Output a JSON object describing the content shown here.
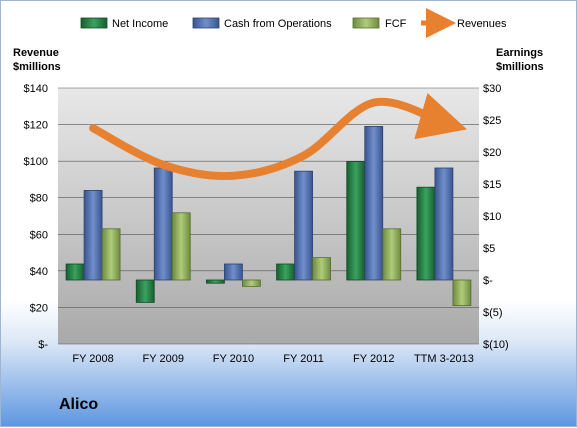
{
  "company": "Alico",
  "left_axis_label": [
    "Revenue",
    "$millions"
  ],
  "right_axis_label": [
    "Earnings",
    "$millions"
  ],
  "chart_data": {
    "type": "bar",
    "categories": [
      "FY 2008",
      "FY 2009",
      "FY 2010",
      "FY 2011",
      "FY 2012",
      "TTM 3-2013"
    ],
    "series": [
      {
        "name": "Net Income",
        "axis": "right",
        "color": "#1f7a3e",
        "values": [
          2.5,
          -3.5,
          -0.5,
          2.5,
          18.5,
          14.5
        ]
      },
      {
        "name": "Cash from Operations",
        "axis": "right",
        "color": "#4c6fb0",
        "values": [
          14,
          17.5,
          2.5,
          17,
          24,
          17.5
        ]
      },
      {
        "name": "FCF",
        "axis": "right",
        "color": "#8fb05a",
        "values": [
          8,
          10.5,
          -1,
          3.5,
          8,
          -4
        ]
      },
      {
        "name": "Revenues",
        "axis": "left",
        "color": "#e8812f",
        "values": [
          118,
          98,
          92,
          103,
          132,
          121
        ]
      }
    ],
    "left_ticks": [
      "$-",
      "$20",
      "$40",
      "$60",
      "$80",
      "$100",
      "$120",
      "$140"
    ],
    "right_ticks": [
      "$(10)",
      "$(5)",
      "$-",
      "$5",
      "$10",
      "$15",
      "$20",
      "$25",
      "$30"
    ],
    "ylim_left": [
      0,
      140
    ],
    "ylim_right": [
      -10,
      30
    ],
    "legend_position": "top",
    "grid": true
  }
}
